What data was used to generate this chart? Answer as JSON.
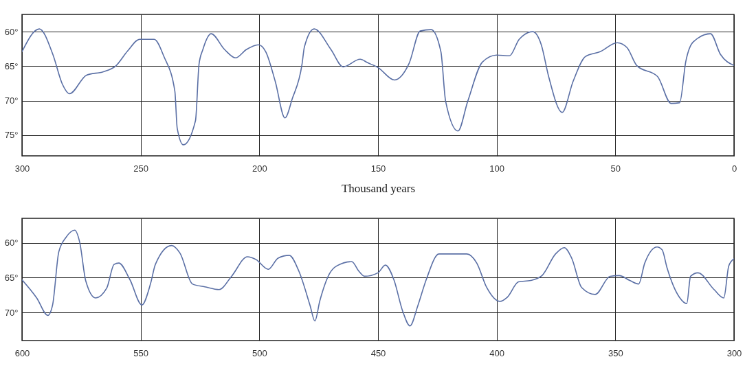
{
  "chart_data": [
    {
      "type": "line",
      "xlabel": "Thousand years",
      "xlim": [
        300,
        0
      ],
      "ylim": [
        78,
        57.5
      ],
      "xticks": [
        300,
        250,
        200,
        150,
        100,
        50,
        0
      ],
      "yticks": [
        {
          "value": 60,
          "label": "60°"
        },
        {
          "value": 65,
          "label": "65°"
        },
        {
          "value": 70,
          "label": "70°"
        },
        {
          "value": 75,
          "label": "75°"
        }
      ],
      "grid": true,
      "x": [
        300,
        292.7,
        287,
        283,
        280,
        272.8,
        265.7,
        260.6,
        255.5,
        250.4,
        244.3,
        240.2,
        235.6,
        234.6,
        232,
        226.9,
        225.4,
        223.8,
        220.3,
        214.6,
        210,
        205.5,
        200.4,
        197.3,
        193.3,
        189.2,
        186.1,
        182,
        181,
        176.9,
        169.8,
        164.7,
        157.5,
        154.4,
        150,
        143.1,
        136.9,
        132.2,
        127.6,
        123.5,
        121.5,
        116.3,
        112.2,
        106,
        100,
        94.6,
        90.5,
        84.8,
        81.2,
        78.1,
        72.4,
        67.8,
        62.6,
        56.4,
        49.2,
        45.1,
        41,
        32.2,
        26.5,
        22.9,
        20.3,
        17.2,
        9.9,
        5.7,
        0
      ],
      "series": [
        {
          "color": "#5a6fa5",
          "values": [
            62.9,
            59.6,
            63.3,
            67.6,
            69,
            66.3,
            65.8,
            65,
            62.8,
            61.1,
            61.1,
            63.6,
            68.6,
            74,
            76.4,
            72.9,
            64.7,
            62.6,
            60.3,
            62.6,
            63.8,
            62.6,
            61.9,
            62.9,
            67.2,
            72.5,
            69.7,
            64.7,
            62.2,
            59.6,
            62.6,
            65.1,
            64,
            64.5,
            65.2,
            67,
            64.6,
            59.9,
            59.7,
            62.9,
            70.1,
            74.4,
            70.1,
            64.4,
            63.4,
            63.5,
            61.1,
            60,
            61.9,
            66.5,
            71.7,
            67.2,
            63.6,
            62.9,
            61.6,
            62.3,
            64.9,
            66.5,
            70.4,
            70.3,
            64.3,
            61.5,
            60.3,
            63.3,
            64.9
          ]
        }
      ]
    },
    {
      "type": "line",
      "xlim": [
        600,
        300
      ],
      "ylim": [
        74,
        56.5
      ],
      "xticks": [
        600,
        550,
        500,
        450,
        400,
        350,
        300
      ],
      "yticks": [
        {
          "value": 60,
          "label": "60°"
        },
        {
          "value": 65,
          "label": "65°"
        },
        {
          "value": 70,
          "label": "70°"
        }
      ],
      "grid": true,
      "x": [
        600,
        593.8,
        589.1,
        587.1,
        584.5,
        581.4,
        577.8,
        575.7,
        573.1,
        569,
        564.3,
        561.2,
        559.2,
        554.5,
        549.5,
        545.8,
        543.8,
        537,
        533.4,
        528.2,
        523,
        516.9,
        511.7,
        505,
        501.4,
        496.2,
        492.1,
        487.4,
        483.3,
        478.6,
        476.6,
        474.5,
        470.4,
        467.3,
        461.1,
        458,
        455.7,
        450,
        446.9,
        443.3,
        439.6,
        436.5,
        433.3,
        429.7,
        424.3,
        416.8,
        412.6,
        408.4,
        404.2,
        398.6,
        395.5,
        390.8,
        385.6,
        380.9,
        375.2,
        371.5,
        368.4,
        364.2,
        358.5,
        352.2,
        348.4,
        343.9,
        340.2,
        337.6,
        332.4,
        330.3,
        328.2,
        323,
        319.9,
        318.3,
        315.2,
        308.4,
        304.3,
        302.2,
        300
      ],
      "series": [
        {
          "color": "#5a6fa5",
          "values": [
            65.3,
            67.9,
            70.4,
            68.9,
            61.3,
            59.2,
            58.2,
            59.9,
            65.5,
            67.9,
            66.5,
            63.1,
            62.9,
            65.3,
            68.9,
            65.8,
            63.1,
            60.4,
            61.5,
            65.9,
            66.3,
            66.7,
            64.8,
            62,
            62.4,
            63.8,
            62.2,
            61.8,
            64.1,
            69,
            71.2,
            68.3,
            64.4,
            63.3,
            62.7,
            64.1,
            64.8,
            64.3,
            63.2,
            65.3,
            69.8,
            71.9,
            69.1,
            65.3,
            61.6,
            61.6,
            61.6,
            62.9,
            66.4,
            68.4,
            67.8,
            65.6,
            65.4,
            64.7,
            61.6,
            60.7,
            62.2,
            66.4,
            67.4,
            64.8,
            64.7,
            65.4,
            65.9,
            62.9,
            60.6,
            61,
            63.6,
            67.8,
            68.7,
            64.8,
            64.3,
            66.7,
            67.9,
            63.3,
            62.3
          ]
        }
      ]
    }
  ]
}
